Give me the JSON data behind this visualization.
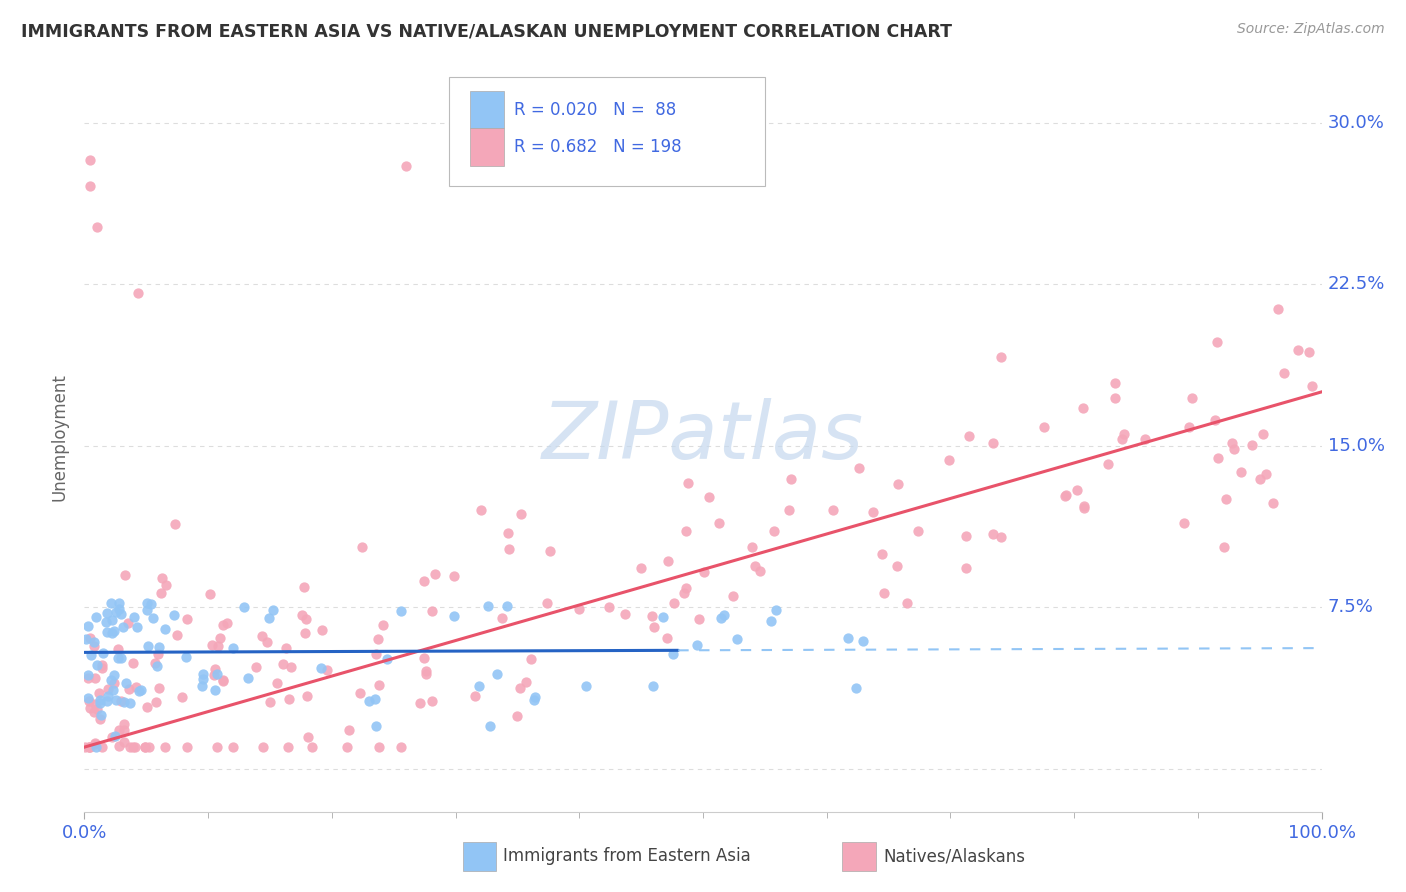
{
  "title": "IMMIGRANTS FROM EASTERN ASIA VS NATIVE/ALASKAN UNEMPLOYMENT CORRELATION CHART",
  "source": "Source: ZipAtlas.com",
  "ylabel": "Unemployment",
  "ytick_vals": [
    0.0,
    0.075,
    0.15,
    0.225,
    0.3
  ],
  "ytick_labels": [
    "",
    "7.5%",
    "15.0%",
    "22.5%",
    "30.0%"
  ],
  "xlim": [
    0.0,
    1.0
  ],
  "ylim": [
    -0.025,
    0.335
  ],
  "blue_R": "0.020",
  "blue_N": "88",
  "pink_R": "0.682",
  "pink_N": "198",
  "blue_dot_color": "#92C5F5",
  "pink_dot_color": "#F4A7B9",
  "blue_line_color": "#2563C4",
  "pink_line_color": "#E8536A",
  "blue_line_dashed_color": "#92C5F5",
  "watermark_color": "#C5D8EE",
  "background_color": "#ffffff",
  "legend_label_blue": "Immigrants from Eastern Asia",
  "legend_label_pink": "Natives/Alaskans",
  "tick_color": "#4169E1",
  "title_color": "#333333",
  "source_color": "#999999",
  "grid_color": "#DDDDDD",
  "ylabel_color": "#666666"
}
